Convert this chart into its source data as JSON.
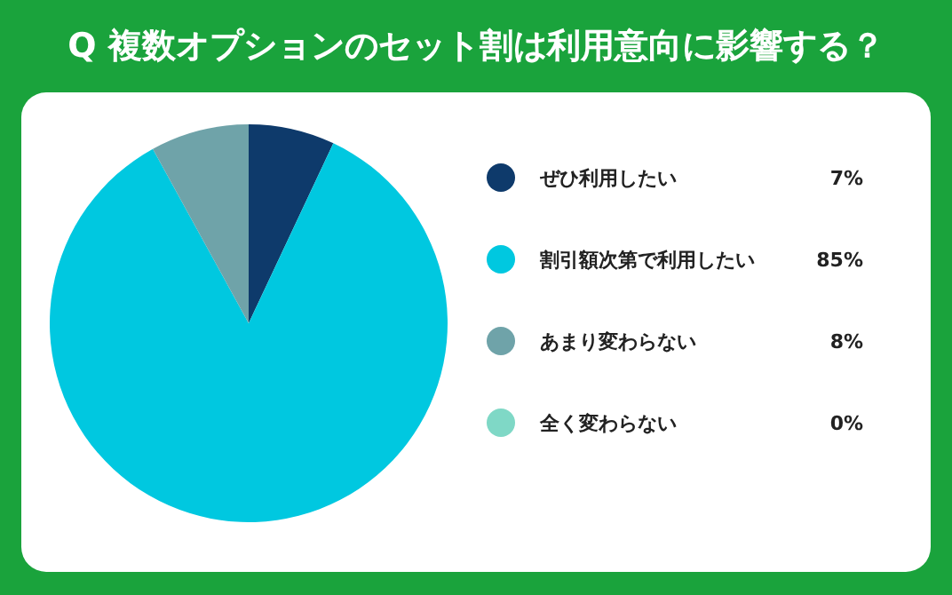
{
  "chart_data": {
    "type": "pie",
    "title": "Q 複数オプションのセット割は利用意向に影響する？",
    "categories": [
      "ぜひ利用したい",
      "割引額次第で利用したい",
      "あまり変わらない",
      "全く変わらない"
    ],
    "values": [
      7,
      85,
      8,
      0
    ],
    "colors": [
      "#0e3a6b",
      "#00c8e0",
      "#6fa3a9",
      "#7fd8c6"
    ],
    "value_labels": [
      "7%",
      "85%",
      "8%",
      "0%"
    ],
    "legend": "right"
  }
}
